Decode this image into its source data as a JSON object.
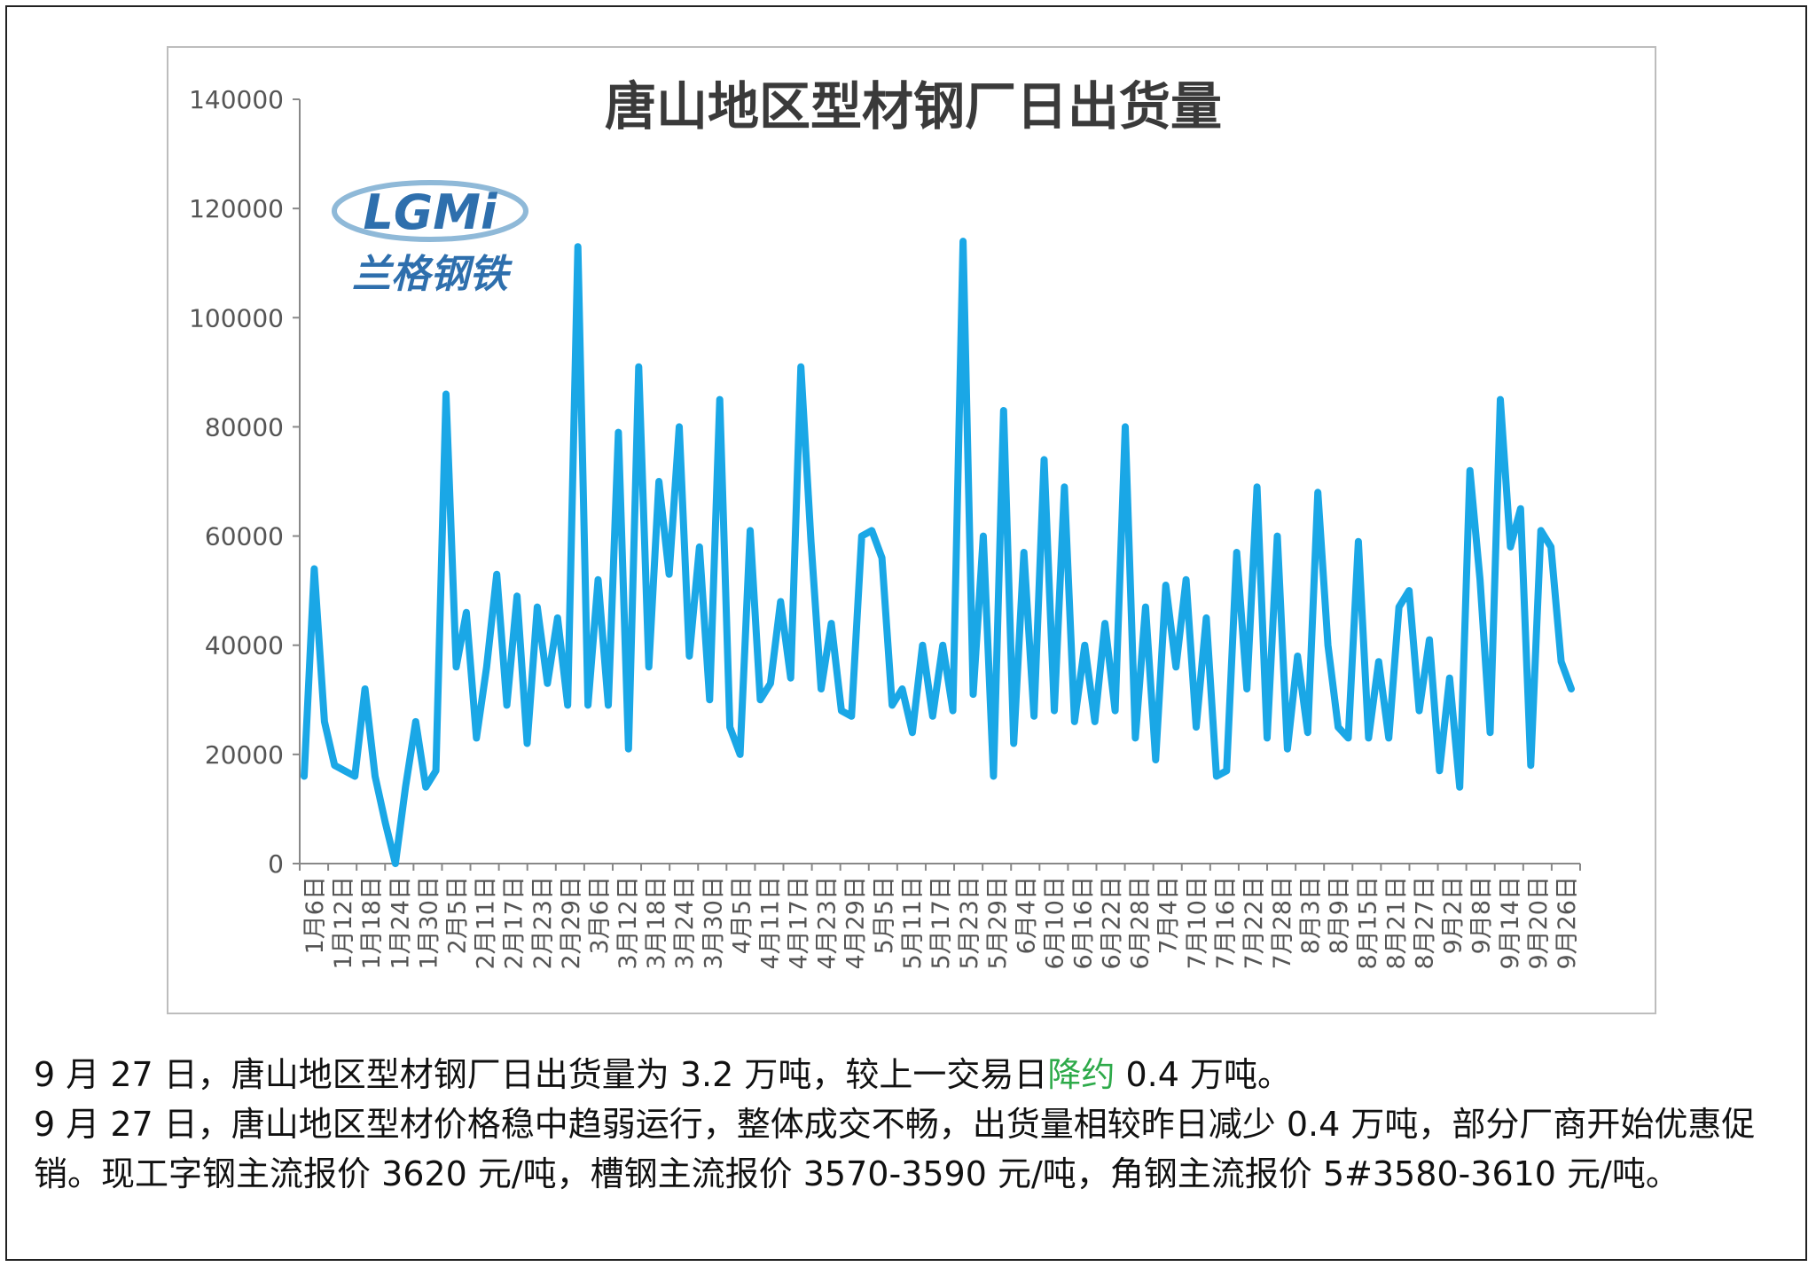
{
  "chart_data": {
    "type": "line",
    "title": "唐山地区型材钢厂日出货量",
    "xlabel": "",
    "ylabel": "",
    "ylim": [
      0,
      140000
    ],
    "yticks": [
      0,
      20000,
      40000,
      60000,
      80000,
      100000,
      120000,
      140000
    ],
    "grid": false,
    "line_color": "#1aa7e6",
    "x_tick_labels": [
      "1月6日",
      "1月12日",
      "1月18日",
      "1月24日",
      "1月30日",
      "2月5日",
      "2月11日",
      "2月17日",
      "2月23日",
      "2月29日",
      "3月6日",
      "3月12日",
      "3月18日",
      "3月24日",
      "3月30日",
      "4月5日",
      "4月11日",
      "4月17日",
      "4月23日",
      "4月29日",
      "5月5日",
      "5月11日",
      "5月17日",
      "5月23日",
      "5月29日",
      "6月4日",
      "6月10日",
      "6月16日",
      "6月22日",
      "6月28日",
      "7月4日",
      "7月10日",
      "7月16日",
      "7月22日",
      "7月28日",
      "8月3日",
      "8月9日",
      "8月15日",
      "8月21日",
      "8月27日",
      "9月2日",
      "9月8日",
      "9月14日",
      "9月20日",
      "9月26日"
    ],
    "series": [
      {
        "values": [
          16000,
          54000,
          26000,
          18000,
          17000,
          16000,
          32000,
          16000,
          7500,
          0,
          14000,
          26000,
          14000,
          17000,
          86000,
          36000,
          46000,
          23000,
          36000,
          53000,
          29000,
          49000,
          22000,
          47000,
          33000,
          45000,
          29000,
          113000,
          29000,
          52000,
          29000,
          79000,
          21000,
          91000,
          36000,
          70000,
          53000,
          80000,
          38000,
          58000,
          30000,
          85000,
          25000,
          20000,
          61000,
          30000,
          33000,
          48000,
          34000,
          91000,
          59000,
          32000,
          44000,
          28000,
          27000,
          60000,
          61000,
          56000,
          29000,
          32000,
          24000,
          40000,
          27000,
          40000,
          28000,
          114000,
          31000,
          60000,
          16000,
          83000,
          22000,
          57000,
          27000,
          74000,
          28000,
          69000,
          26000,
          40000,
          26000,
          44000,
          28000,
          80000,
          23000,
          47000,
          19000,
          51000,
          36000,
          52000,
          25000,
          45000,
          16000,
          17000,
          57000,
          32000,
          69000,
          23000,
          60000,
          21000,
          38000,
          24000,
          68000,
          40000,
          25000,
          23000,
          59000,
          23000,
          37000,
          23000,
          47000,
          50000,
          28000,
          41000,
          17000,
          34000,
          14000,
          72000,
          52000,
          24000,
          85000,
          58000,
          65000,
          18000,
          61000,
          58000,
          37000,
          32000
        ]
      }
    ]
  },
  "logo": {
    "top": "LGMi",
    "bottom": "兰格钢铁"
  },
  "summary": {
    "line1_a": "9 月 27 日，唐山地区型材钢厂日出货量为 3.2 万吨，较上一交易日",
    "line1_b": "降约",
    "line1_c": " 0.4 万吨。",
    "line2": "9 月 27 日，唐山地区型材价格稳中趋弱运行，整体成交不畅，出货量相较昨日减少 0.4 万吨，部分厂商开始优惠促销。现工字钢主流报价 3620 元/吨，槽钢主流报价 3570-3590 元/吨，角钢主流报价 5#3580-3610 元/吨。"
  }
}
